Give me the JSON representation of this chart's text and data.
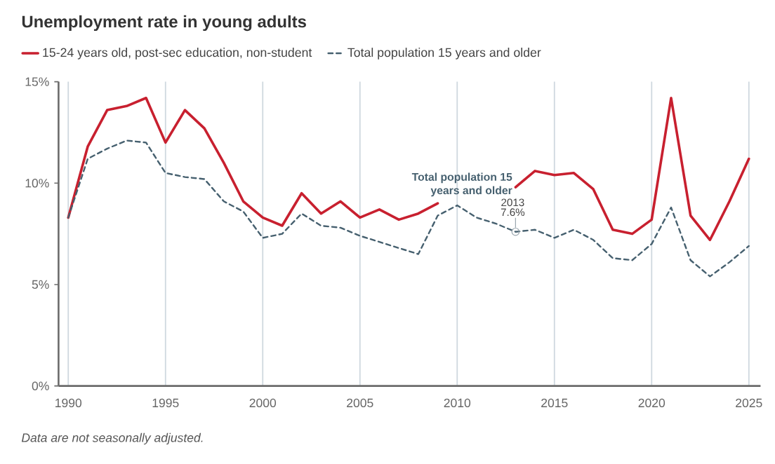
{
  "chart_data": {
    "type": "line",
    "title": "Unemployment rate in young adults",
    "x": [
      1990,
      1991,
      1992,
      1993,
      1994,
      1995,
      1996,
      1997,
      1998,
      1999,
      2000,
      2001,
      2002,
      2003,
      2004,
      2005,
      2006,
      2007,
      2008,
      2009,
      2010,
      2011,
      2012,
      2013,
      2014,
      2015,
      2016,
      2017,
      2018,
      2019,
      2020,
      2021,
      2022,
      2023,
      2024,
      2025
    ],
    "series": [
      {
        "name": "15-24 years old, post-sec education, non-student",
        "color": "#c8202f",
        "line_style": "solid",
        "values": [
          8.3,
          11.8,
          13.6,
          13.8,
          14.2,
          12.0,
          13.6,
          12.7,
          11.0,
          9.1,
          8.3,
          7.9,
          9.5,
          8.5,
          9.1,
          8.3,
          8.7,
          8.2,
          8.5,
          9.0,
          null,
          null,
          null,
          9.8,
          10.6,
          10.4,
          10.5,
          9.7,
          7.7,
          7.5,
          8.2,
          14.2,
          8.4,
          7.2,
          9.1,
          11.2
        ]
      },
      {
        "name": "Total population 15 years and older",
        "color": "#46606f",
        "line_style": "dashed",
        "values": [
          8.3,
          11.2,
          11.7,
          12.1,
          12.0,
          10.5,
          10.3,
          10.2,
          9.1,
          8.6,
          7.3,
          7.5,
          8.5,
          7.9,
          7.8,
          7.4,
          7.1,
          6.8,
          6.5,
          8.4,
          8.9,
          8.3,
          8.0,
          7.6,
          7.7,
          7.3,
          7.7,
          7.2,
          6.3,
          6.2,
          7.0,
          8.8,
          6.2,
          5.4,
          6.1,
          6.9
        ]
      }
    ],
    "xlim": [
      1989.5,
      2025.6
    ],
    "xticks": [
      1990,
      1995,
      2000,
      2005,
      2010,
      2015,
      2020,
      2025
    ],
    "ylim": [
      0,
      15
    ],
    "yticks": [
      {
        "value": 0,
        "label": "0%"
      },
      {
        "value": 5,
        "label": "5%"
      },
      {
        "value": 10,
        "label": "10%"
      },
      {
        "value": 15,
        "label": "15%"
      }
    ],
    "grid": "x",
    "legend": "top left",
    "marker": "none",
    "annotations": [
      {
        "text": "2013",
        "x": 2013,
        "y": 7.6
      },
      {
        "text": "7.6%",
        "x": 2013,
        "y": 7.6
      },
      "Data are not seasonally adjusted."
    ]
  }
}
